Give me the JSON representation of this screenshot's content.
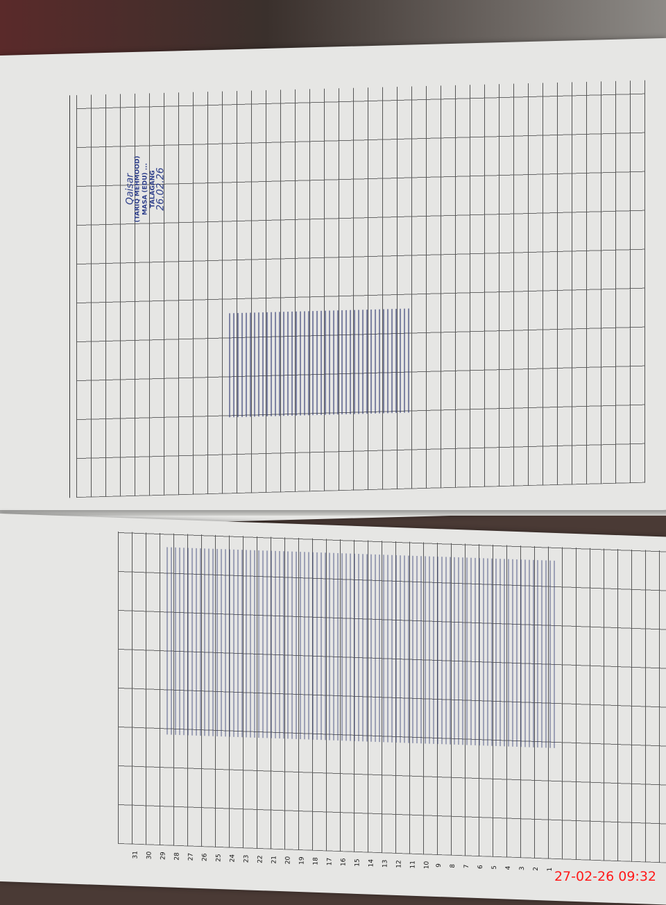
{
  "photo": {
    "timestamp": "27-02-26  09:32"
  },
  "stamp": {
    "signature": "Qaisar",
    "name": "(TARIQ MEHMOOD)",
    "title": "MASA (EDU) ...",
    "place": "TALAGANG",
    "date": "26.02.26"
  },
  "register": {
    "ink_color": "#2d3e8a",
    "day_numbers": [
      "1",
      "2",
      "3",
      "4",
      "5",
      "6",
      "7",
      "8",
      "9",
      "10",
      "11",
      "12",
      "13",
      "14",
      "15",
      "16",
      "17",
      "18",
      "19",
      "20",
      "21",
      "22",
      "23",
      "24",
      "25",
      "26",
      "27",
      "28",
      "29",
      "30",
      "31"
    ]
  }
}
